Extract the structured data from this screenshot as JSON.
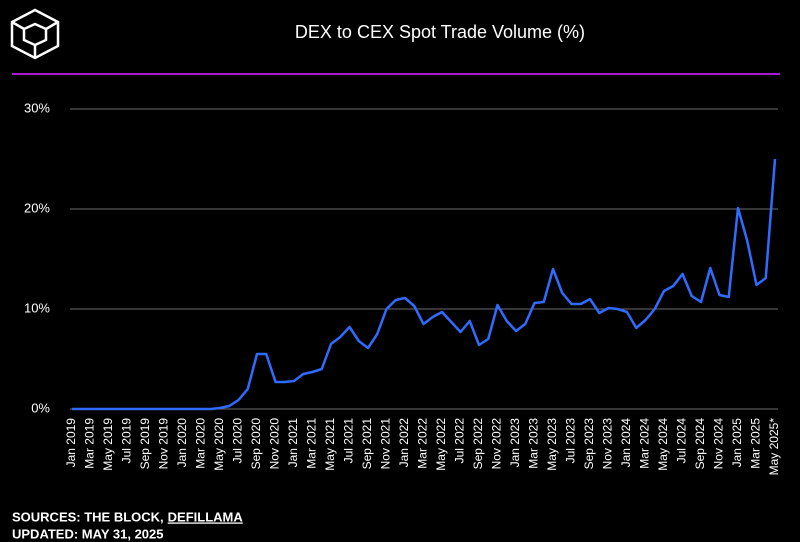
{
  "chart_data": {
    "type": "line",
    "title": "DEX to CEX Spot Trade Volume (%)",
    "categories": [
      "Jan 2019",
      null,
      "Mar 2019",
      null,
      "May 2019",
      null,
      "Jul 2019",
      null,
      "Sep 2019",
      null,
      "Nov 2019",
      null,
      "Jan 2020",
      null,
      "Mar 2020",
      null,
      "May 2020",
      null,
      "Jul 2020",
      null,
      "Sep 2020",
      null,
      "Nov 2020",
      null,
      "Jan 2021",
      null,
      "Mar 2021",
      null,
      "May 2021",
      null,
      "Jul 2021",
      null,
      "Sep 2021",
      null,
      "Nov 2021",
      null,
      "Jan 2022",
      null,
      "Mar 2022",
      null,
      "May 2022",
      null,
      "Jul 2022",
      null,
      "Sep 2022",
      null,
      "Nov 2022",
      null,
      "Jan 2023",
      null,
      "Mar 2023",
      null,
      "May 2023",
      null,
      "Jul 2023",
      null,
      "Sep 2023",
      null,
      "Nov 2023",
      null,
      "Jan 2024",
      null,
      "Mar 2024",
      null,
      "May 2024",
      null,
      "Jul 2024",
      null,
      "Sep 2024",
      null,
      "Nov 2024",
      null,
      "Jan 2025",
      null,
      "Mar 2025",
      null,
      "May 2025*"
    ],
    "values": [
      0,
      0,
      0,
      0,
      0,
      0,
      0,
      0,
      0,
      0,
      0,
      0,
      0,
      0,
      0,
      0,
      0.1,
      0.3,
      0.9,
      2,
      5.5,
      5.5,
      2.7,
      2.7,
      2.8,
      3.5,
      3.7,
      4.0,
      6.5,
      7.2,
      8.2,
      6.8,
      6.1,
      7.5,
      10.0,
      10.9,
      11.1,
      10.3,
      8.5,
      9.2,
      9.7,
      8.7,
      7.7,
      8.8,
      6.4,
      7.0,
      10.4,
      8.8,
      7.8,
      8.5,
      10.6,
      10.7,
      14.0,
      11.6,
      10.5,
      10.5,
      11.0,
      9.6,
      10.1,
      10.0,
      9.7,
      8.1,
      8.9,
      10.0,
      11.8,
      12.3,
      13.5,
      11.3,
      10.7,
      14.1,
      11.4,
      11.2,
      20.1,
      16.8,
      12.4,
      13.1,
      25.0
    ],
    "color": "#2f6bff",
    "ylim": [
      0,
      31
    ],
    "yticks": [
      {
        "value": 0,
        "label": "0%"
      },
      {
        "value": 10,
        "label": "10%"
      },
      {
        "value": 20,
        "label": "20%"
      },
      {
        "value": 30,
        "label": "30%"
      }
    ],
    "grid": true
  },
  "footer": {
    "sources_label": "SOURCES: THE BLOCK,",
    "sources_link": "DEFILLAMA",
    "updated": "UPDATED: MAY 31, 2025"
  }
}
